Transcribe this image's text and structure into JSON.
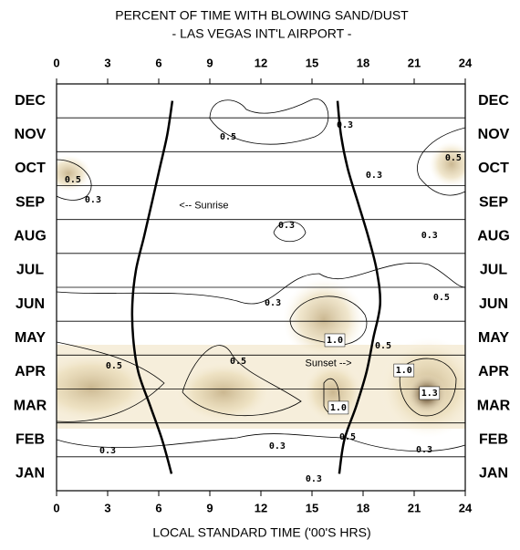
{
  "chart_data": {
    "type": "contour",
    "title": "PERCENT OF TIME WITH BLOWING SAND/DUST",
    "subtitle": "- LAS VEGAS INT'L AIRPORT -",
    "x_label": "LOCAL STANDARD TIME ('00'S HRS)",
    "xlim": [
      0,
      24
    ],
    "xticks": [
      0,
      3,
      6,
      9,
      12,
      15,
      18,
      21,
      24
    ],
    "y_categories": [
      "JAN",
      "FEB",
      "MAR",
      "APR",
      "MAY",
      "JUN",
      "JUL",
      "AUG",
      "SEP",
      "OCT",
      "NOV",
      "DEC"
    ],
    "series": [
      {
        "name": "<-- Sunrise",
        "label_x": 7.2,
        "label_y": 8.9,
        "values": [
          6.75,
          6.2,
          5.5,
          4.8,
          4.5,
          4.45,
          4.66,
          5.14,
          5.6,
          6.05,
          6.5,
          6.8
        ]
      },
      {
        "name": "Sunset -->",
        "label_x": 14.6,
        "label_y": 4.25,
        "values": [
          16.6,
          16.9,
          17.6,
          18.2,
          18.6,
          19.0,
          18.8,
          18.3,
          17.7,
          17.1,
          16.7,
          16.5
        ]
      }
    ],
    "contour_labels": [
      {
        "value": 0.5,
        "x": 10.07,
        "y": 10.94
      },
      {
        "value": 0.5,
        "x": 0.96,
        "y": 9.68
      },
      {
        "value": 0.3,
        "x": 2.14,
        "y": 9.08
      },
      {
        "value": 0.3,
        "x": 18.64,
        "y": 9.81
      },
      {
        "value": 0.5,
        "x": 23.3,
        "y": 10.32
      },
      {
        "value": 0.3,
        "x": 16.93,
        "y": 11.29
      },
      {
        "value": 0.3,
        "x": 13.5,
        "y": 8.33
      },
      {
        "value": 0.3,
        "x": 21.9,
        "y": 8.03
      },
      {
        "value": 0.3,
        "x": 12.7,
        "y": 6.04
      },
      {
        "value": 0.5,
        "x": 22.6,
        "y": 6.2
      },
      {
        "value": 1.0,
        "x": 16.34,
        "y": 4.94,
        "label": "1.0"
      },
      {
        "value": 0.5,
        "x": 19.18,
        "y": 4.78
      },
      {
        "value": 0.5,
        "x": 3.37,
        "y": 4.19
      },
      {
        "value": 0.5,
        "x": 10.66,
        "y": 4.32
      },
      {
        "value": 1.0,
        "x": 20.4,
        "y": 4.05,
        "label": "1.0"
      },
      {
        "value": 1.3,
        "x": 21.9,
        "y": 3.38
      },
      {
        "value": 1.0,
        "x": 16.55,
        "y": 2.95,
        "label": "1.0"
      },
      {
        "value": 0.5,
        "x": 17.09,
        "y": 2.09
      },
      {
        "value": 0.3,
        "x": 3.0,
        "y": 1.68
      },
      {
        "value": 0.3,
        "x": 12.96,
        "y": 1.82
      },
      {
        "value": 0.3,
        "x": 21.59,
        "y": 1.71
      },
      {
        "value": 0.3,
        "x": 15.1,
        "y": 0.85
      }
    ]
  }
}
